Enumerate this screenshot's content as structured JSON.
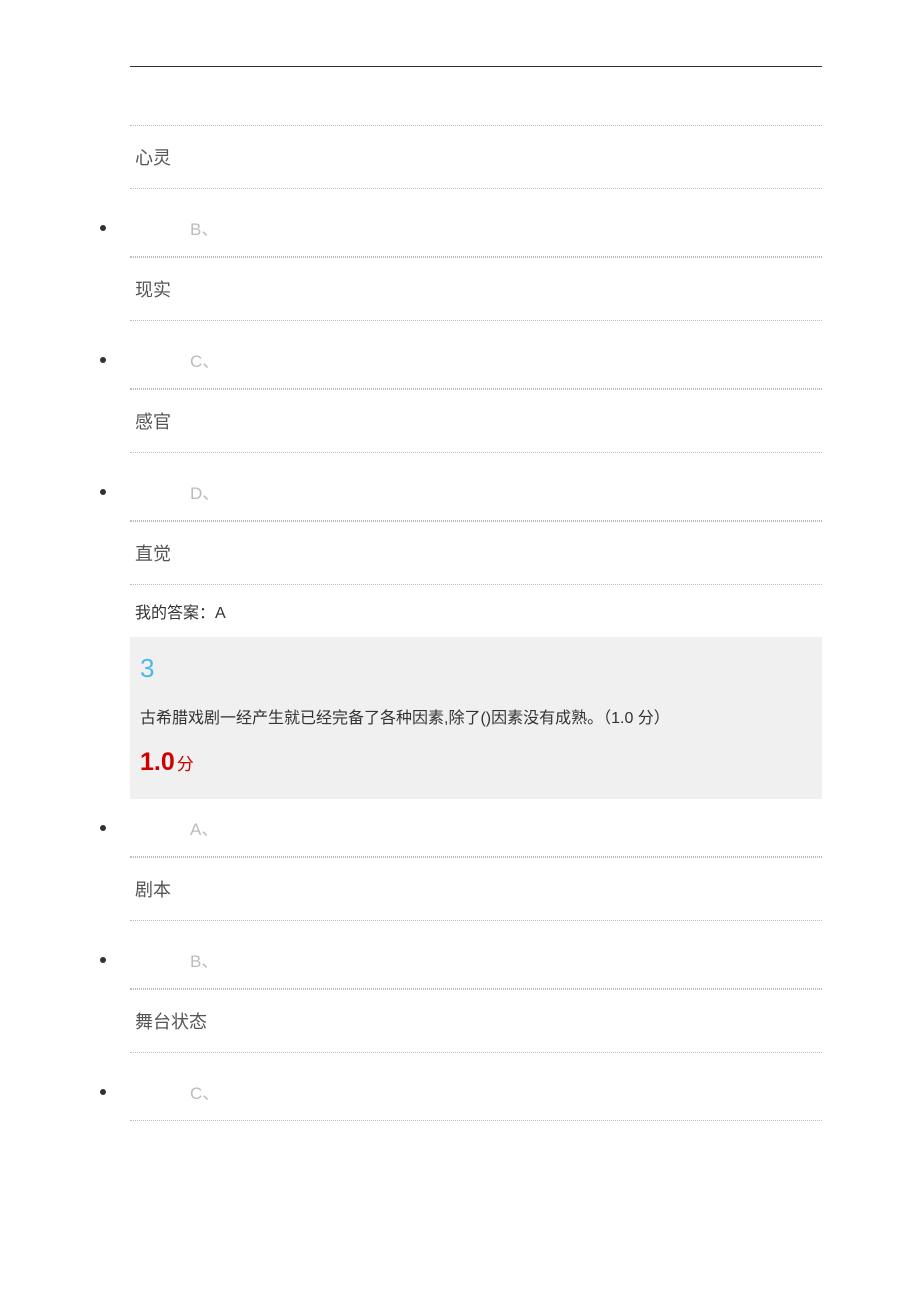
{
  "options_prev": [
    {
      "letter": "",
      "text": "心灵",
      "showLetter": false
    },
    {
      "letter": "B、",
      "text": "现实",
      "showLetter": true
    },
    {
      "letter": "C、",
      "text": "感官",
      "showLetter": true
    },
    {
      "letter": "D、",
      "text": "直觉",
      "showLetter": true
    }
  ],
  "my_answer_label": "我的答案：A",
  "question3": {
    "number": "3",
    "text": "古希腊戏剧一经产生就已经完备了各种因素,除了()因素没有成熟。（1.0 分）",
    "score_num": "1.0",
    "score_unit": "分"
  },
  "options_q3": [
    {
      "letter": "A、",
      "text": "剧本"
    },
    {
      "letter": "B、",
      "text": "舞台状态"
    },
    {
      "letter": "C、",
      "text": ""
    }
  ],
  "colors": {
    "question_number": "#4DB8E8",
    "score": "#CC0000",
    "option_letter": "#bbb",
    "text_main": "#555",
    "question_bg": "#f0f0f0"
  }
}
